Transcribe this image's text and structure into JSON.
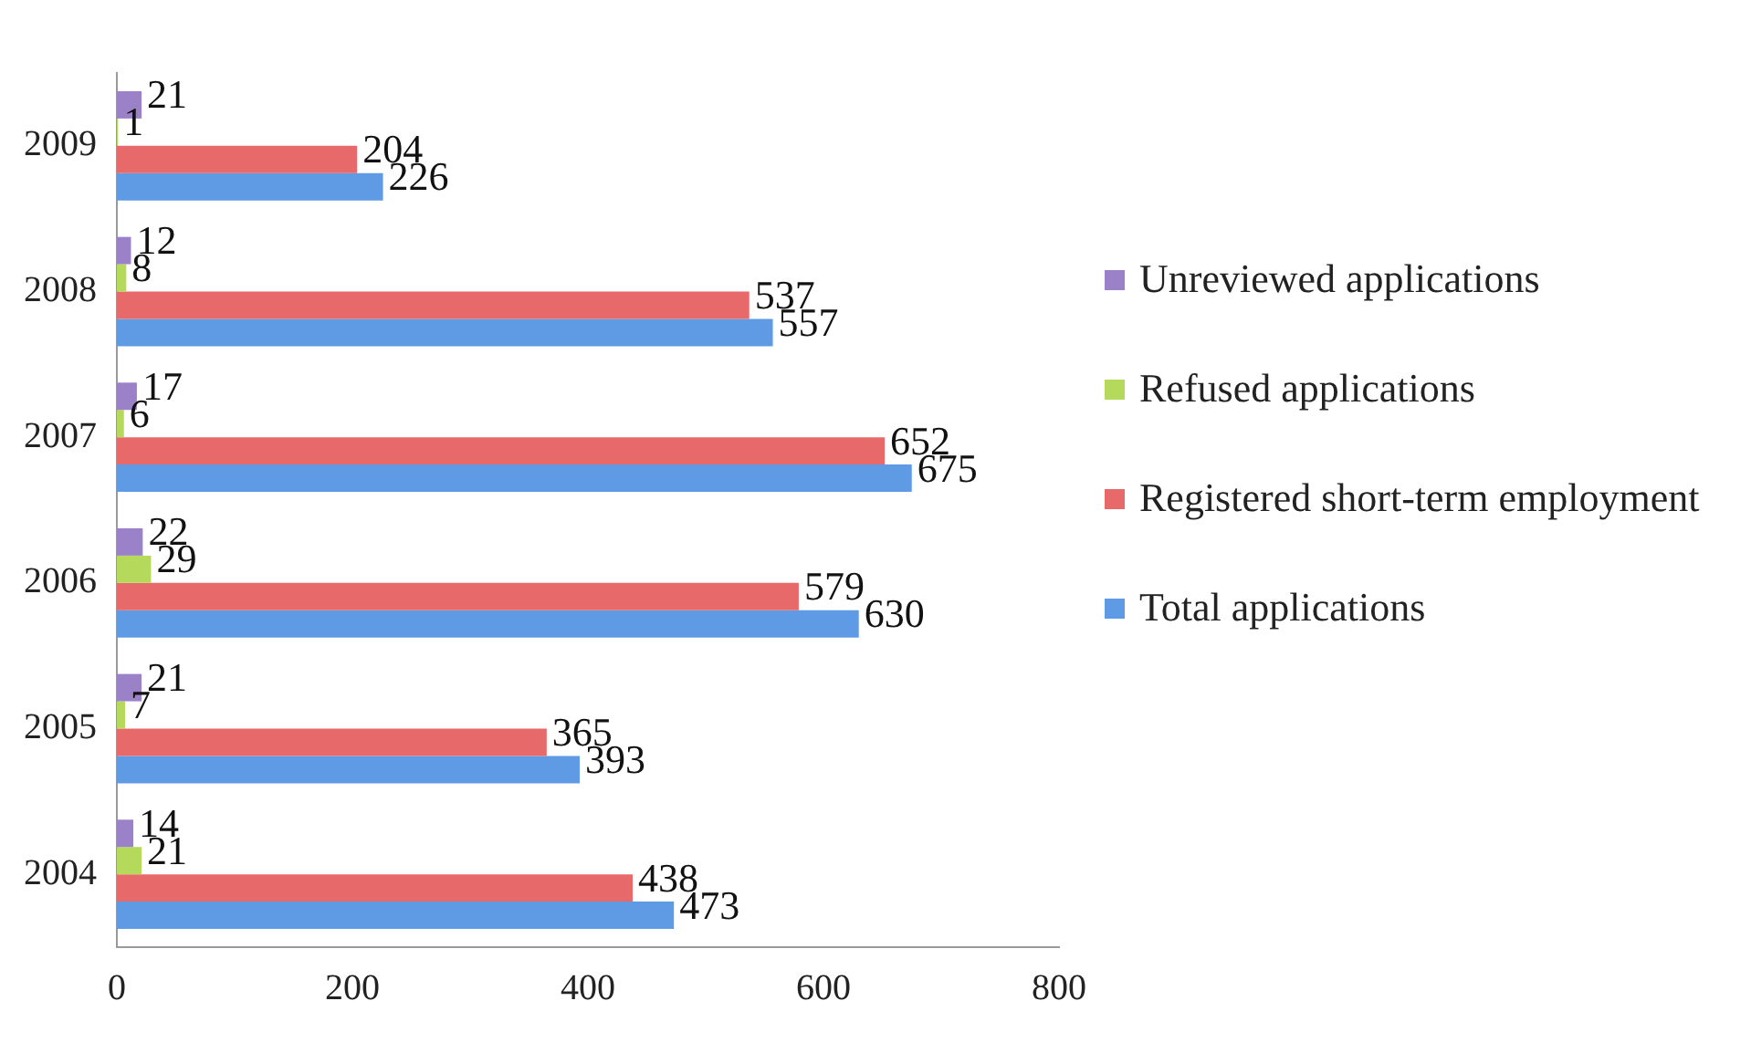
{
  "chart_data": {
    "type": "bar",
    "orientation": "horizontal",
    "categories": [
      "2009",
      "2008",
      "2007",
      "2006",
      "2005",
      "2004"
    ],
    "series": [
      {
        "name": "Unreviewed applications",
        "color": "#9b82c8",
        "values": [
          21,
          12,
          17,
          22,
          21,
          14
        ]
      },
      {
        "name": "Refused applications",
        "color": "#b5d95a",
        "values": [
          1,
          8,
          6,
          29,
          7,
          21
        ]
      },
      {
        "name": "Registered short-term employment",
        "color": "#e8696a",
        "values": [
          204,
          537,
          652,
          579,
          365,
          438
        ]
      },
      {
        "name": "Total applications",
        "color": "#5e9be4",
        "values": [
          226,
          557,
          675,
          630,
          393,
          473
        ]
      }
    ],
    "xlim": [
      0,
      800
    ],
    "xticks": [
      0,
      200,
      400,
      600,
      800
    ],
    "grid": false,
    "legend": "right",
    "data_labels": true
  }
}
